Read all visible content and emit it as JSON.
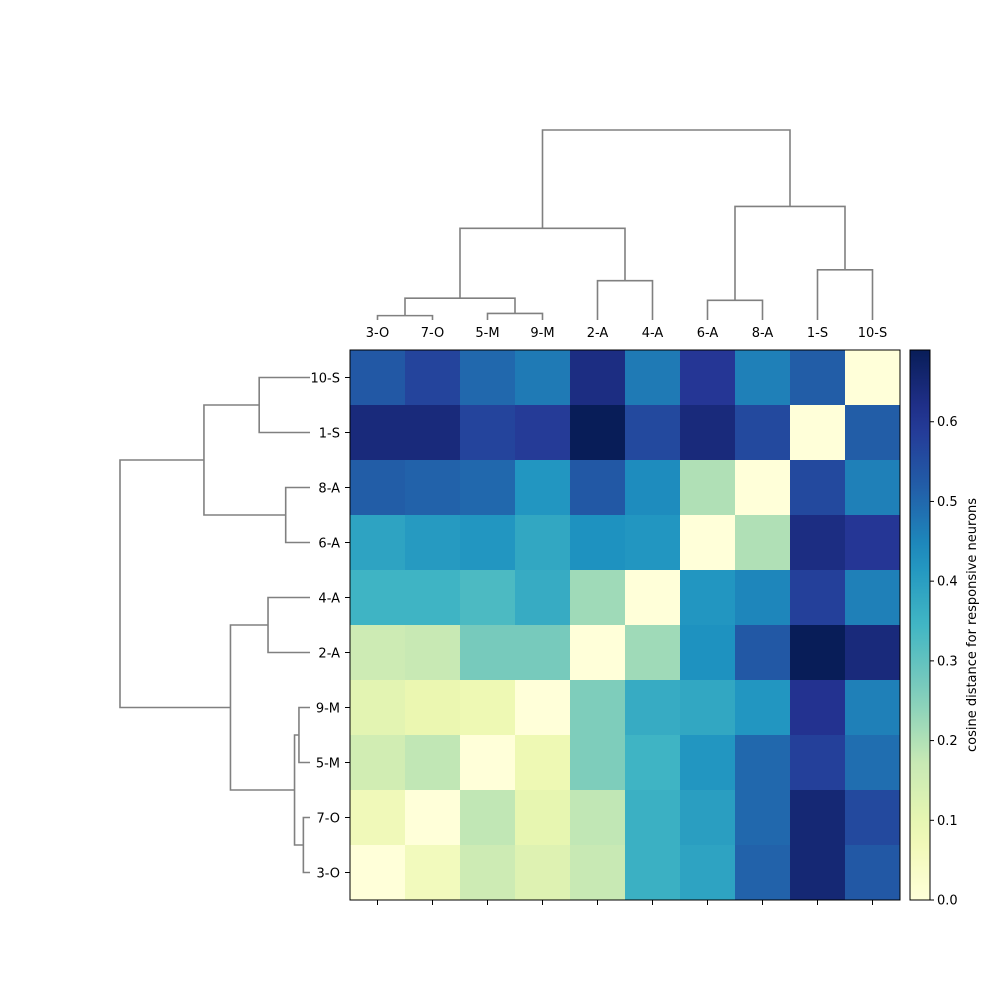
{
  "chart_data": {
    "type": "heatmap",
    "col_labels": [
      "3-O",
      "7-O",
      "5-M",
      "9-M",
      "2-A",
      "4-A",
      "6-A",
      "8-A",
      "1-S",
      "10-S"
    ],
    "row_labels": [
      "10-S",
      "1-S",
      "8-A",
      "6-A",
      "4-A",
      "2-A",
      "9-M",
      "5-M",
      "7-O",
      "3-O"
    ],
    "values": [
      [
        0.53,
        0.57,
        0.5,
        0.47,
        0.63,
        0.47,
        0.6,
        0.46,
        0.52,
        0.0
      ],
      [
        0.64,
        0.64,
        0.57,
        0.59,
        0.69,
        0.56,
        0.64,
        0.56,
        0.0,
        0.52
      ],
      [
        0.52,
        0.51,
        0.5,
        0.42,
        0.53,
        0.44,
        0.2,
        0.0,
        0.56,
        0.46
      ],
      [
        0.39,
        0.41,
        0.42,
        0.38,
        0.43,
        0.42,
        0.0,
        0.2,
        0.63,
        0.6
      ],
      [
        0.35,
        0.35,
        0.33,
        0.37,
        0.22,
        0.0,
        0.42,
        0.45,
        0.58,
        0.46
      ],
      [
        0.16,
        0.17,
        0.27,
        0.27,
        0.0,
        0.22,
        0.43,
        0.53,
        0.69,
        0.64
      ],
      [
        0.11,
        0.09,
        0.08,
        0.0,
        0.26,
        0.37,
        0.38,
        0.42,
        0.61,
        0.46
      ],
      [
        0.15,
        0.18,
        0.0,
        0.08,
        0.26,
        0.35,
        0.42,
        0.5,
        0.58,
        0.49
      ],
      [
        0.07,
        0.0,
        0.18,
        0.1,
        0.18,
        0.36,
        0.4,
        0.5,
        0.65,
        0.56
      ],
      [
        0.0,
        0.06,
        0.16,
        0.12,
        0.17,
        0.36,
        0.39,
        0.51,
        0.65,
        0.53
      ]
    ],
    "colormap": "YlGnBu",
    "vmin": 0,
    "vmax": 0.69,
    "colorbar_label": "cosine distance for responsive neurons",
    "colorbar_ticks": [
      0.0,
      0.1,
      0.2,
      0.3,
      0.4,
      0.5,
      0.6
    ],
    "dendrogram_color": "#808080",
    "col_dendrogram": {
      "height_max": 0.9,
      "links": [
        {
          "a": 0,
          "b": 1,
          "h": 0.02
        },
        {
          "a": 2,
          "b": 3,
          "h": 0.03
        },
        {
          "a": 10,
          "b": 11,
          "h": 0.1
        },
        {
          "a": 4,
          "b": 5,
          "h": 0.18
        },
        {
          "a": 6,
          "b": 7,
          "h": 0.09
        },
        {
          "a": 8,
          "b": 9,
          "h": 0.23
        },
        {
          "a": 12,
          "b": 13,
          "h": 0.42
        },
        {
          "a": 14,
          "b": 15,
          "h": 0.52
        },
        {
          "a": 16,
          "b": 17,
          "h": 0.87
        }
      ]
    },
    "row_dendrogram": {
      "height_max": 1.0,
      "links": [
        {
          "a": 9,
          "b": 8,
          "h": 0.03
        },
        {
          "a": 7,
          "b": 6,
          "h": 0.05
        },
        {
          "a": 10,
          "b": 11,
          "h": 0.07
        },
        {
          "a": 5,
          "b": 4,
          "h": 0.19
        },
        {
          "a": 12,
          "b": 13,
          "h": 0.36
        },
        {
          "a": 3,
          "b": 2,
          "h": 0.11
        },
        {
          "a": 1,
          "b": 0,
          "h": 0.23
        },
        {
          "a": 15,
          "b": 16,
          "h": 0.48
        },
        {
          "a": 14,
          "b": 17,
          "h": 0.86
        }
      ]
    }
  }
}
